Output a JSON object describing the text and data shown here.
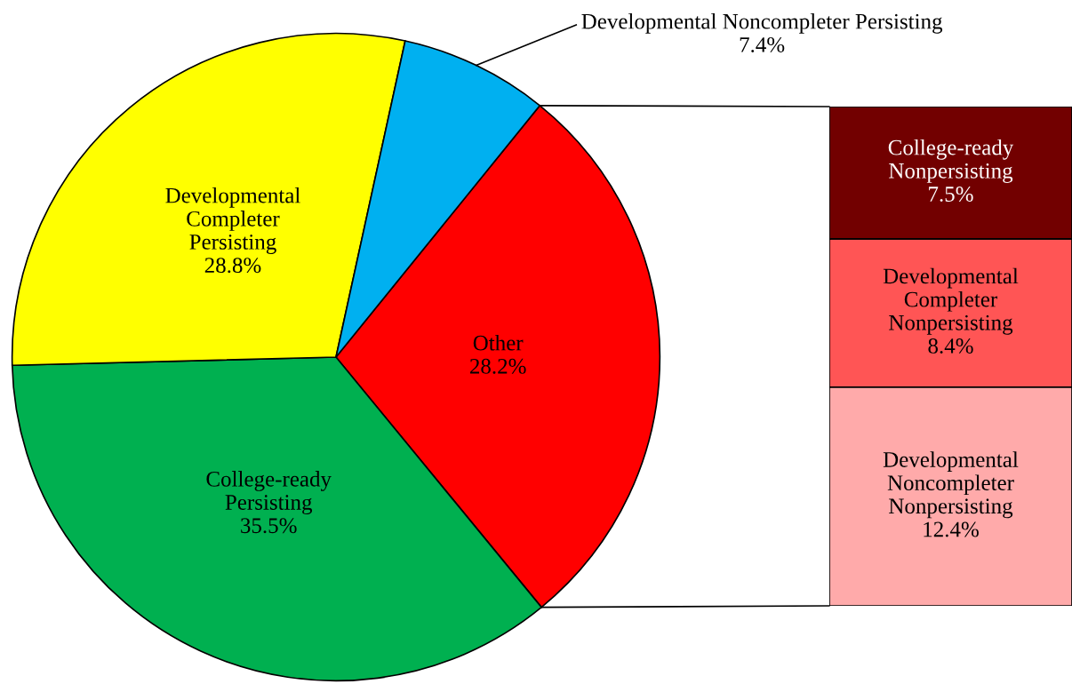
{
  "chart_data": [
    {
      "type": "pie",
      "categories": [
        "Other",
        "College-ready Persisting",
        "Developmental Completer Persisting",
        "Developmental Noncompleter Persisting"
      ],
      "values": [
        28.2,
        35.5,
        28.8,
        7.4
      ],
      "value_labels": [
        "28.2%",
        "35.5%",
        "28.8%",
        "7.4%"
      ],
      "colors": [
        "#ff0000",
        "#00b050",
        "#ffff00",
        "#00b0f0"
      ]
    },
    {
      "type": "bar",
      "stacked": true,
      "categories": [
        null
      ],
      "series": [
        {
          "name": "Developmental Noncompleter Nonpersisting",
          "color": "#ffaaaa",
          "values": [
            12.4
          ],
          "value_labels": [
            "12.4%"
          ]
        },
        {
          "name": "Developmental Completer Nonpersisting",
          "color": "#ff5555",
          "values": [
            8.4
          ],
          "value_labels": [
            "8.4%"
          ]
        },
        {
          "name": "College-ready Nonpersisting",
          "color": "#720000",
          "values": [
            7.5
          ],
          "value_labels": [
            "7.5%"
          ]
        }
      ]
    }
  ]
}
